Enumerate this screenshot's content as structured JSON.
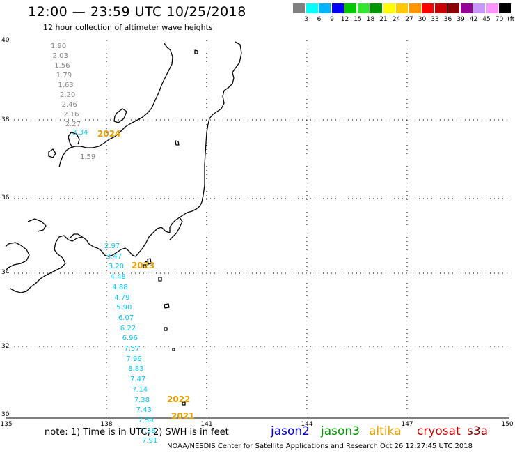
{
  "header": {
    "title": "12:00 — 23:59 UTC 10/25/2018",
    "subtitle": "12 hour collection of altimeter wave heights"
  },
  "scale": {
    "colors": [
      "#808080",
      "#00ffff",
      "#00b4ff",
      "#0000ff",
      "#00c800",
      "#32e632",
      "#009600",
      "#ffff00",
      "#ffc800",
      "#ff9600",
      "#ff0000",
      "#c80000",
      "#8b0000",
      "#960096",
      "#c896ff",
      "#ff96ff",
      "#000000"
    ],
    "labels": [
      "3",
      "6",
      "9",
      "12",
      "15",
      "18",
      "21",
      "24",
      "27",
      "30",
      "33",
      "36",
      "39",
      "42",
      "45",
      "70",
      "(ft)"
    ]
  },
  "axes": {
    "lat_labels": [
      "40",
      "38",
      "36",
      "34",
      "32",
      "30"
    ],
    "lon_labels": [
      "135",
      "138",
      "141",
      "144",
      "147",
      "150"
    ]
  },
  "tracks": [
    {
      "satellite": "altika",
      "color": "#808080",
      "label_color": "#808080",
      "values": [
        "1.90",
        "2.03",
        "1.56",
        "1.79",
        "1.63",
        "2.20",
        "2.46",
        "2.16",
        "2.27"
      ]
    },
    {
      "satellite": "jason3",
      "color": "#00c8ff",
      "values": [
        "3.34"
      ]
    },
    {
      "satellite": "altika",
      "color": "#808080",
      "values": [
        "1.59"
      ]
    },
    {
      "satellite": "jason3",
      "color": "#00c8ff",
      "values": [
        "2.97",
        "3.47",
        "3.20",
        "4.48",
        "4.88",
        "4.79",
        "5.90",
        "6.07",
        "6.22",
        "6.96",
        "7.57",
        "7.96",
        "8.83",
        "7.47",
        "7.14",
        "7.38",
        "7.43",
        "7.59",
        "7.38",
        "7.91"
      ]
    }
  ],
  "year_labels": [
    "2024",
    "2023",
    "2022",
    "2021"
  ],
  "footer": {
    "note": "note: 1) Time is in UTC; 2) SWH is in feet",
    "satellites": [
      {
        "name": "jason2",
        "color": "#0000cc"
      },
      {
        "name": "jason3",
        "color": "#009600"
      },
      {
        "name": "altika",
        "color": "#e8a000"
      },
      {
        "name": "cryosat",
        "color": "#c80000"
      },
      {
        "name": "s3a",
        "color": "#8b0000"
      }
    ],
    "credit": "NOAA/NESDIS Center for Satellite Applications and Research   Oct 26 12:27:45 UTC 2018"
  }
}
